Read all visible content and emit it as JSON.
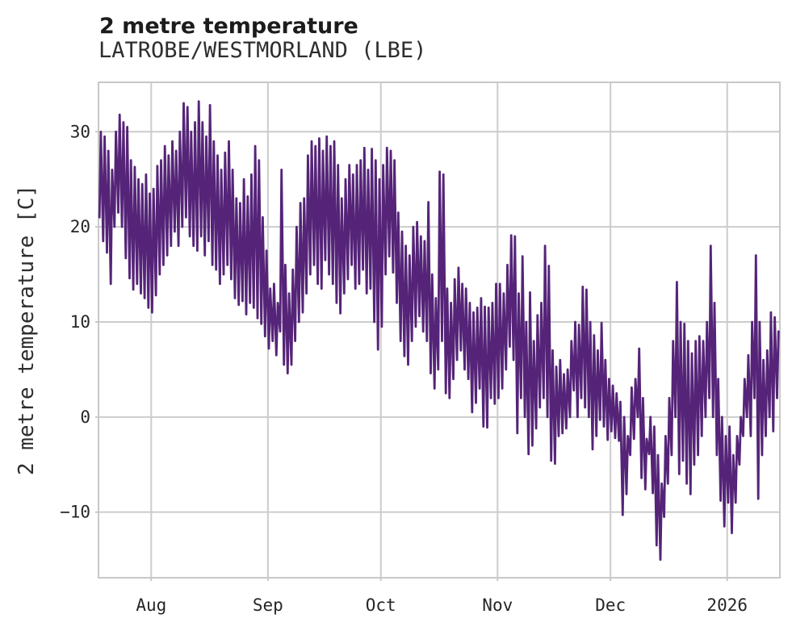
{
  "chart_data": {
    "type": "line",
    "title": "2 metre temperature",
    "subtitle": "LATROBE/WESTMORLAND (LBE)",
    "ylabel": "2 metre temperature [C]",
    "xlabel": "",
    "ylim": [
      -16.9,
      35.2
    ],
    "grid": true,
    "legend": "none",
    "background": "#ffffff",
    "grid_color": "#cccccc",
    "frame_color": "#c8c8c8",
    "yticks": [
      {
        "value": 30,
        "label": "30"
      },
      {
        "value": 20,
        "label": "20"
      },
      {
        "value": 10,
        "label": "10"
      },
      {
        "value": 0,
        "label": "0"
      },
      {
        "value": -10,
        "label": "−10"
      }
    ],
    "x_range_days": 181,
    "xticks": [
      {
        "day": 14,
        "label": "Aug"
      },
      {
        "day": 45,
        "label": "Sep"
      },
      {
        "day": 75,
        "label": "Oct"
      },
      {
        "day": 106,
        "label": "Nov"
      },
      {
        "day": 136,
        "label": "Dec"
      },
      {
        "day": 167,
        "label": "2026"
      }
    ],
    "series": [
      {
        "name": "2 metre temperature",
        "color": "#552478",
        "points_per_day": 2,
        "tmin": [
          21,
          18.5,
          17.3,
          14,
          20,
          21.5,
          20,
          16.7,
          14.6,
          13.4,
          14,
          13,
          12.5,
          11.5,
          11,
          12.8,
          15,
          16,
          17,
          18,
          19.5,
          18,
          20,
          21,
          19,
          18,
          17.5,
          19,
          17,
          18.5,
          16,
          15.5,
          14,
          15,
          16,
          14.5,
          12.5,
          11.8,
          12.2,
          10.8,
          12,
          11.5,
          10.4,
          9.8,
          8.5,
          7.2,
          8,
          6.5,
          9,
          5.5,
          4.6,
          5.5,
          8,
          10,
          11,
          13,
          15,
          16,
          14,
          13.5,
          16.5,
          15,
          14,
          12,
          10.9,
          13,
          14.5,
          16,
          13.5,
          14,
          15.5,
          13,
          13.5,
          10,
          7.1,
          9.5,
          15,
          16.9,
          15.2,
          12,
          8,
          6.4,
          5.5,
          8,
          9.5,
          10.6,
          9,
          8,
          4.6,
          3,
          5,
          8,
          2.5,
          2,
          4,
          6,
          7,
          5,
          4,
          0.5,
          1.5,
          3,
          -1,
          -1.1,
          2,
          1.4,
          2,
          3,
          5,
          7.4,
          6,
          -1.7,
          2,
          0,
          -3.9,
          -3,
          -1.2,
          1,
          2,
          0,
          -4.6,
          -4.9,
          -2,
          -1.7,
          -1.2,
          0,
          2.8,
          0,
          2,
          1,
          0,
          -3.4,
          -2,
          -0.3,
          -1,
          -2.4,
          -1.5,
          -2.2,
          -2.5,
          -10.3,
          -8.1,
          -4,
          -2.3,
          0,
          -6.4,
          -7.6,
          -3.9,
          -8,
          -13.5,
          -15,
          -10.5,
          -7,
          -4,
          0,
          -6,
          -4.6,
          -7,
          -8.1,
          -5,
          -4,
          -2,
          0,
          2,
          0,
          -4,
          -8.8,
          -11.5,
          -9,
          -12.2,
          -9,
          -5,
          -2,
          0,
          -2,
          2,
          -8.6,
          -4,
          -2,
          0,
          -1.5,
          2,
          5
        ],
        "tmax": [
          30,
          29.5,
          28,
          26,
          30,
          31.8,
          31,
          30.5,
          27,
          26.3,
          25,
          24.5,
          25.5,
          23.5,
          24,
          26.4,
          27,
          28.5,
          27.5,
          29,
          28,
          30,
          33,
          32.6,
          30,
          31,
          33.2,
          31,
          29.5,
          32.8,
          29,
          27.5,
          26,
          27.8,
          29,
          26,
          23,
          22.5,
          25,
          23.2,
          25.5,
          28.5,
          27,
          21,
          17.5,
          13.5,
          14,
          12,
          26,
          16,
          13,
          15.5,
          20,
          22.5,
          23,
          27.5,
          29,
          28.5,
          29.3,
          28,
          29.5,
          28.5,
          29,
          26.5,
          23,
          25,
          26.5,
          25.5,
          26.5,
          27,
          28.3,
          26,
          28.2,
          27,
          25,
          26.5,
          28.3,
          28,
          27,
          21.5,
          19.5,
          18,
          17,
          20,
          20.5,
          19,
          18.5,
          22.6,
          15,
          12.5,
          25.8,
          25.5,
          13.5,
          12,
          14.5,
          15.7,
          14,
          13.5,
          12,
          11,
          11.5,
          12.5,
          11.6,
          11.5,
          12,
          14,
          14,
          13,
          16,
          19.1,
          19,
          13,
          16.9,
          10,
          13.1,
          8,
          10.7,
          12,
          18,
          15.9,
          7,
          5.3,
          6,
          4.5,
          5,
          8,
          10,
          9.7,
          13.7,
          13.4,
          10,
          8.6,
          7,
          9.9,
          6,
          4,
          3.3,
          2.5,
          1.6,
          0,
          -2,
          3.1,
          4,
          7.2,
          2,
          -2.3,
          0,
          -1,
          -4,
          -7,
          -2,
          2,
          8,
          14.2,
          10,
          9.8,
          8,
          6.7,
          8,
          8.5,
          8,
          10,
          18,
          12,
          4,
          0,
          -2,
          -1,
          -4,
          -2,
          0,
          4,
          6.5,
          10,
          17,
          10,
          6,
          7,
          11,
          10.5,
          9,
          11
        ]
      }
    ]
  }
}
